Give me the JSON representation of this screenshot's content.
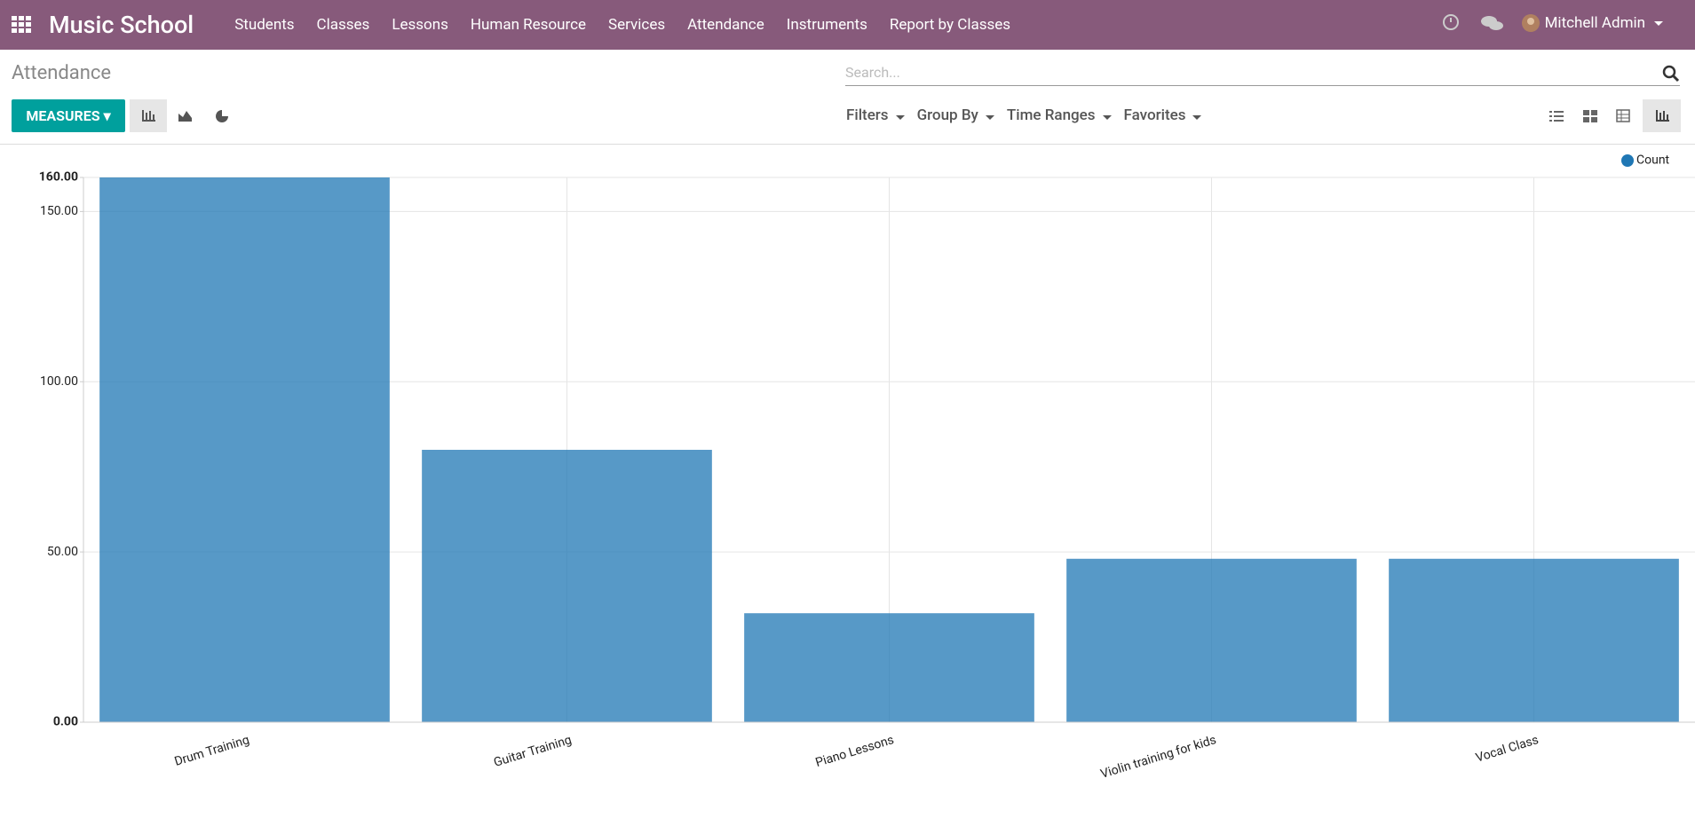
{
  "navbar": {
    "brand": "Music School",
    "menu": [
      "Students",
      "Classes",
      "Lessons",
      "Human Resource",
      "Services",
      "Attendance",
      "Instruments",
      "Report by Classes"
    ],
    "user": "Mitchell Admin"
  },
  "control_panel": {
    "breadcrumb": "Attendance",
    "search_placeholder": "Search...",
    "measures": "MEASURES",
    "filters": [
      "Filters",
      "Group By",
      "Time Ranges",
      "Favorites"
    ]
  },
  "chart_data": {
    "type": "bar",
    "categories": [
      "Drum Training",
      "Guitar Training",
      "Piano Lessons",
      "Violin training for kids",
      "Vocal Class"
    ],
    "series": [
      {
        "name": "Count",
        "color": "#1f77b4",
        "values": [
          160,
          80,
          32,
          48,
          48
        ]
      }
    ],
    "ylim": [
      0,
      160
    ],
    "yticks": [
      {
        "value": 0,
        "label": "0.00"
      },
      {
        "value": 50,
        "label": "50.00"
      },
      {
        "value": 100,
        "label": "100.00"
      },
      {
        "value": 150,
        "label": "150.00"
      },
      {
        "value": 160,
        "label": "160.00"
      }
    ],
    "grid": true,
    "legend": "top-right"
  }
}
